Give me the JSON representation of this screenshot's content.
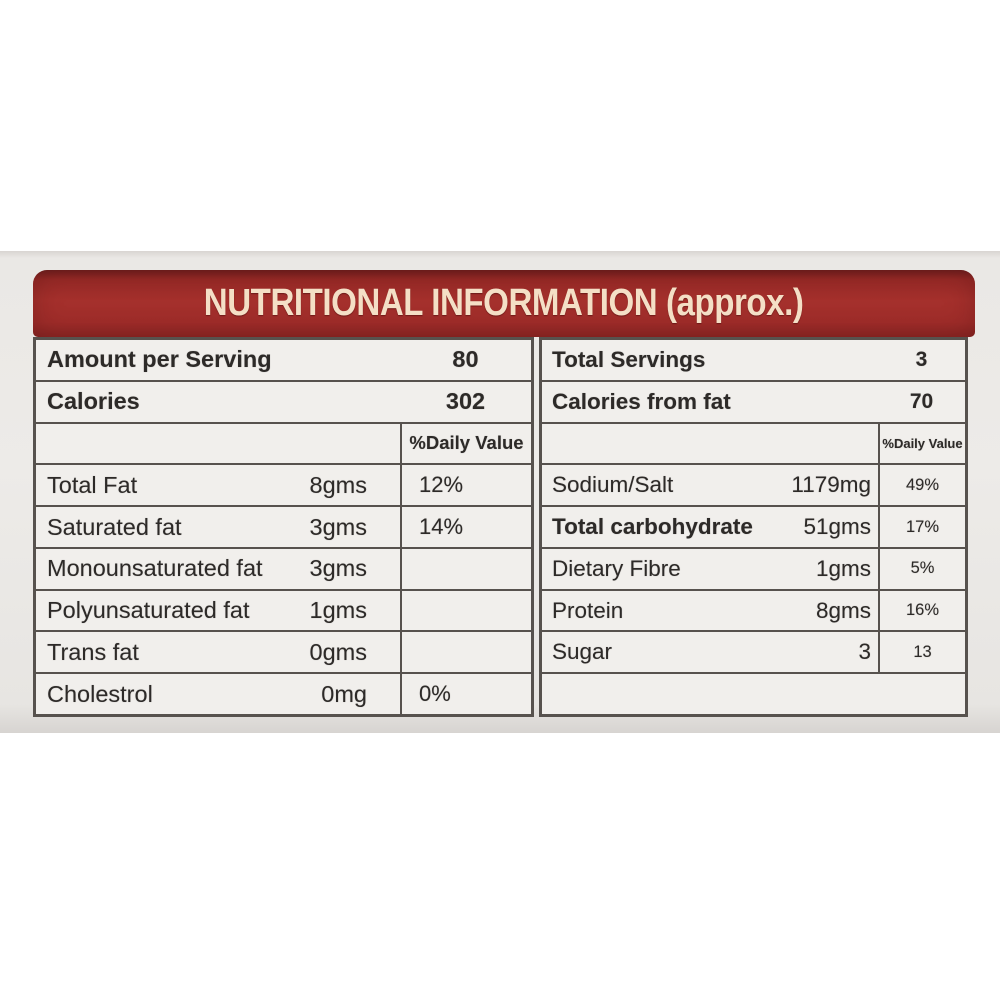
{
  "header": {
    "title": "NUTRITIONAL INFORMATION (approx.)"
  },
  "left": {
    "summary": [
      {
        "label": "Amount per Serving",
        "value": "80"
      },
      {
        "label": "Calories",
        "value": "302"
      }
    ],
    "daily_value_header": "%Daily Value",
    "rows": [
      {
        "label": "Total Fat",
        "amount": "8gms",
        "daily_value": "12%"
      },
      {
        "label": "Saturated fat",
        "amount": "3gms",
        "daily_value": "14%"
      },
      {
        "label": "Monounsaturated fat",
        "amount": "3gms",
        "daily_value": ""
      },
      {
        "label": "Polyunsaturated fat",
        "amount": "1gms",
        "daily_value": ""
      },
      {
        "label": "Trans fat",
        "amount": "0gms",
        "daily_value": ""
      },
      {
        "label": "Cholestrol",
        "amount": "0mg",
        "daily_value": "0%"
      }
    ]
  },
  "right": {
    "summary": [
      {
        "label": "Total Servings",
        "value": "3"
      },
      {
        "label": "Calories from fat",
        "value": "70"
      }
    ],
    "daily_value_header": "%Daily Value",
    "rows": [
      {
        "label": "Sodium/Salt",
        "amount": "1179mg",
        "daily_value": "49%"
      },
      {
        "label": "Total carbohydrate",
        "amount": "51gms",
        "daily_value": "17%"
      },
      {
        "label": "Dietary Fibre",
        "amount": "1gms",
        "daily_value": "5%"
      },
      {
        "label": "Protein",
        "amount": "8gms",
        "daily_value": "16%"
      },
      {
        "label": "Sugar",
        "amount": "3",
        "daily_value": "13"
      }
    ]
  },
  "colors": {
    "header_background": "#a22d2a",
    "header_text": "#f4dfc6",
    "table_background": "#f1efec",
    "border": "#57524e",
    "text": "#2d2a28",
    "package_surface": "#eae8e5"
  }
}
